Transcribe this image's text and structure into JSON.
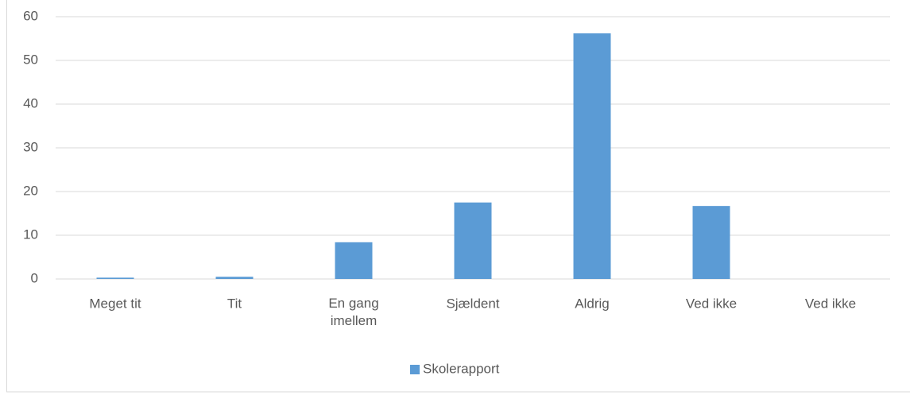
{
  "chart_data": {
    "type": "bar",
    "categories": [
      "Meget tit",
      "Tit",
      "En gang imellem",
      "Sjældent",
      "Aldrig",
      "Ved ikke",
      "Ved ikke"
    ],
    "series": [
      {
        "name": "Skolerapport",
        "color": "#5b9bd5",
        "values": [
          0.3,
          0.5,
          8.4,
          17.5,
          56.2,
          16.7,
          0
        ]
      }
    ],
    "ylim": [
      0,
      60
    ],
    "yticks": [
      0,
      10,
      20,
      30,
      40,
      50,
      60
    ],
    "grid": true,
    "legend": "bottom"
  }
}
